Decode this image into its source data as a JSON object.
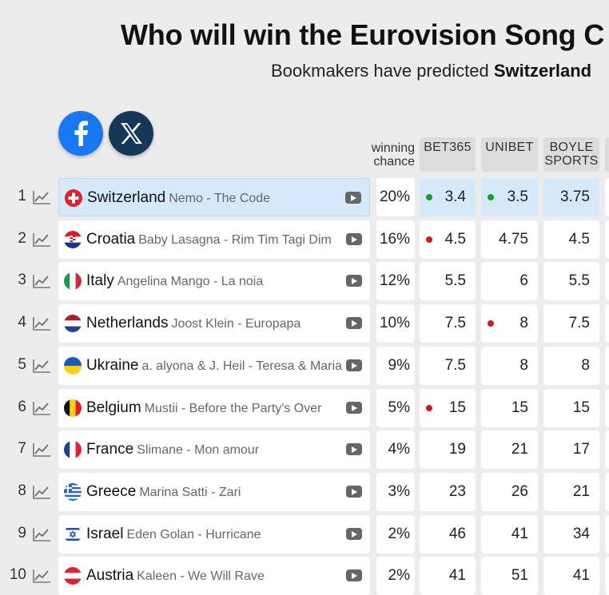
{
  "header": {
    "title": "Who will win the Eurovision Song C",
    "subtitle_prefix": "Bookmakers have predicted ",
    "subtitle_bold": "Switzerland"
  },
  "share": [
    {
      "name": "facebook",
      "icon": "facebook-icon",
      "color": "#1877f2"
    },
    {
      "name": "x",
      "icon": "x-icon",
      "color": "#15375a"
    }
  ],
  "columns": {
    "chance_line1": "winning",
    "chance_line2": "chance",
    "bookmakers": [
      {
        "line1": "BET365",
        "line2": ""
      },
      {
        "line1": "UNIBET",
        "line2": ""
      },
      {
        "line1": "BOYLE",
        "line2": "SPORTS"
      }
    ]
  },
  "colors": {
    "highlight": "#d6e9fb",
    "green_dot": "#1a9c2a",
    "red_dot": "#d11a1a"
  },
  "rows": [
    {
      "rank": "1",
      "flag": "switzerland",
      "country": "Switzerland",
      "song": "Nemo - The Code",
      "chance": "20%",
      "odds": [
        {
          "value": "3.4",
          "dot": "green"
        },
        {
          "value": "3.5",
          "dot": "green"
        },
        {
          "value": "3.75",
          "dot": ""
        }
      ]
    },
    {
      "rank": "2",
      "flag": "croatia",
      "country": "Croatia",
      "song": "Baby Lasagna - Rim Tim Tagi Dim",
      "chance": "16%",
      "odds": [
        {
          "value": "4.5",
          "dot": "red"
        },
        {
          "value": "4.75",
          "dot": ""
        },
        {
          "value": "4.5",
          "dot": ""
        }
      ]
    },
    {
      "rank": "3",
      "flag": "italy",
      "country": "Italy",
      "song": "Angelina Mango - La noia",
      "chance": "12%",
      "odds": [
        {
          "value": "5.5",
          "dot": ""
        },
        {
          "value": "6",
          "dot": ""
        },
        {
          "value": "5.5",
          "dot": ""
        }
      ]
    },
    {
      "rank": "4",
      "flag": "netherlands",
      "country": "Netherlands",
      "song": "Joost Klein - Europapa",
      "chance": "10%",
      "odds": [
        {
          "value": "7.5",
          "dot": ""
        },
        {
          "value": "8",
          "dot": "red"
        },
        {
          "value": "7.5",
          "dot": ""
        }
      ]
    },
    {
      "rank": "5",
      "flag": "ukraine",
      "country": "Ukraine",
      "song": "a. alyona & J. Heil - Teresa & Maria",
      "chance": "9%",
      "odds": [
        {
          "value": "7.5",
          "dot": ""
        },
        {
          "value": "8",
          "dot": ""
        },
        {
          "value": "8",
          "dot": ""
        }
      ]
    },
    {
      "rank": "6",
      "flag": "belgium",
      "country": "Belgium",
      "song": "Mustii - Before the Party's Over",
      "chance": "5%",
      "odds": [
        {
          "value": "15",
          "dot": "red"
        },
        {
          "value": "15",
          "dot": ""
        },
        {
          "value": "15",
          "dot": ""
        }
      ]
    },
    {
      "rank": "7",
      "flag": "france",
      "country": "France",
      "song": "Slimane - Mon amour",
      "chance": "4%",
      "odds": [
        {
          "value": "19",
          "dot": ""
        },
        {
          "value": "21",
          "dot": ""
        },
        {
          "value": "17",
          "dot": ""
        }
      ]
    },
    {
      "rank": "8",
      "flag": "greece",
      "country": "Greece",
      "song": "Marina Satti - Zari",
      "chance": "3%",
      "odds": [
        {
          "value": "23",
          "dot": ""
        },
        {
          "value": "26",
          "dot": ""
        },
        {
          "value": "21",
          "dot": ""
        }
      ]
    },
    {
      "rank": "9",
      "flag": "israel",
      "country": "Israel",
      "song": "Eden Golan - Hurricane",
      "chance": "2%",
      "odds": [
        {
          "value": "46",
          "dot": ""
        },
        {
          "value": "41",
          "dot": ""
        },
        {
          "value": "34",
          "dot": ""
        }
      ]
    },
    {
      "rank": "10",
      "flag": "austria",
      "country": "Austria",
      "song": "Kaleen - We Will Rave",
      "chance": "2%",
      "odds": [
        {
          "value": "41",
          "dot": ""
        },
        {
          "value": "51",
          "dot": ""
        },
        {
          "value": "41",
          "dot": ""
        }
      ]
    }
  ]
}
